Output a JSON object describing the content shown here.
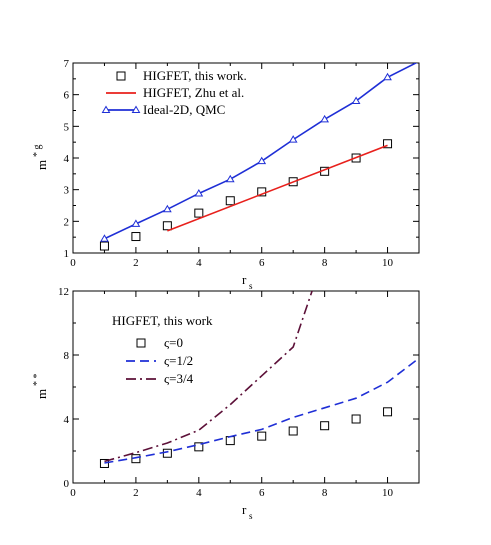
{
  "chart_data": [
    {
      "type": "line",
      "xlabel": "r",
      "xlabel_sub": "s",
      "ylabel_main": "m",
      "ylabel_sup": "* g",
      "xlim": [
        0,
        11
      ],
      "ylim": [
        1,
        7
      ],
      "xticks": [
        0,
        2,
        4,
        6,
        8,
        10
      ],
      "yticks": [
        1,
        2,
        3,
        4,
        5,
        6,
        7
      ],
      "legend_position": "top-left",
      "series": [
        {
          "name": "HIGFET, this work.",
          "style": "square-markers",
          "color": "#000000",
          "x": [
            1,
            2,
            3,
            4,
            5,
            6,
            7,
            8,
            9,
            10
          ],
          "y": [
            1.22,
            1.52,
            1.86,
            2.26,
            2.65,
            2.93,
            3.25,
            3.58,
            4.0,
            4.45
          ]
        },
        {
          "name": "HIGFET, Zhu et al.",
          "style": "solid",
          "color": "#e8201c",
          "x": [
            3,
            10
          ],
          "y": [
            1.7,
            4.4
          ]
        },
        {
          "name": "Ideal-2D, QMC",
          "style": "solid-triangles",
          "color": "#1f2fd6",
          "x": [
            1,
            2,
            3,
            4,
            5,
            6,
            7,
            8,
            9,
            10,
            11
          ],
          "y": [
            1.45,
            1.92,
            2.38,
            2.88,
            3.33,
            3.9,
            4.58,
            5.22,
            5.8,
            6.55,
            7.05
          ],
          "marker_x": [
            1,
            2,
            3,
            4,
            5,
            6,
            7,
            8,
            9,
            10
          ]
        }
      ]
    },
    {
      "type": "line",
      "xlabel": "r",
      "xlabel_sub": "s",
      "ylabel_main": "m",
      "ylabel_sup": "* *",
      "xlim": [
        0,
        11
      ],
      "ylim": [
        0,
        12
      ],
      "xticks": [
        0,
        2,
        4,
        6,
        8,
        10
      ],
      "yticks": [
        0,
        4,
        8,
        12
      ],
      "legend_title": "HIGFET, this work",
      "legend_position": "top-left",
      "series": [
        {
          "name": "ς=0",
          "style": "square-markers",
          "color": "#000000",
          "x": [
            1,
            2,
            3,
            4,
            5,
            6,
            7,
            8,
            9,
            10
          ],
          "y": [
            1.22,
            1.52,
            1.86,
            2.26,
            2.65,
            2.93,
            3.25,
            3.58,
            4.0,
            4.45
          ]
        },
        {
          "name": "ς=1/2",
          "style": "dashed",
          "color": "#1f2fd6",
          "x": [
            1,
            2,
            3,
            4,
            5,
            6,
            7,
            8,
            9,
            10,
            11
          ],
          "y": [
            1.25,
            1.58,
            1.95,
            2.4,
            2.9,
            3.35,
            4.1,
            4.7,
            5.3,
            6.3,
            7.8
          ]
        },
        {
          "name": "ς=3/4",
          "style": "dash-dot",
          "color": "#5c1038",
          "x": [
            1,
            2,
            3,
            4,
            5,
            6,
            7,
            7.6
          ],
          "y": [
            1.35,
            1.9,
            2.5,
            3.3,
            4.9,
            6.7,
            8.5,
            12.0
          ]
        }
      ]
    }
  ]
}
